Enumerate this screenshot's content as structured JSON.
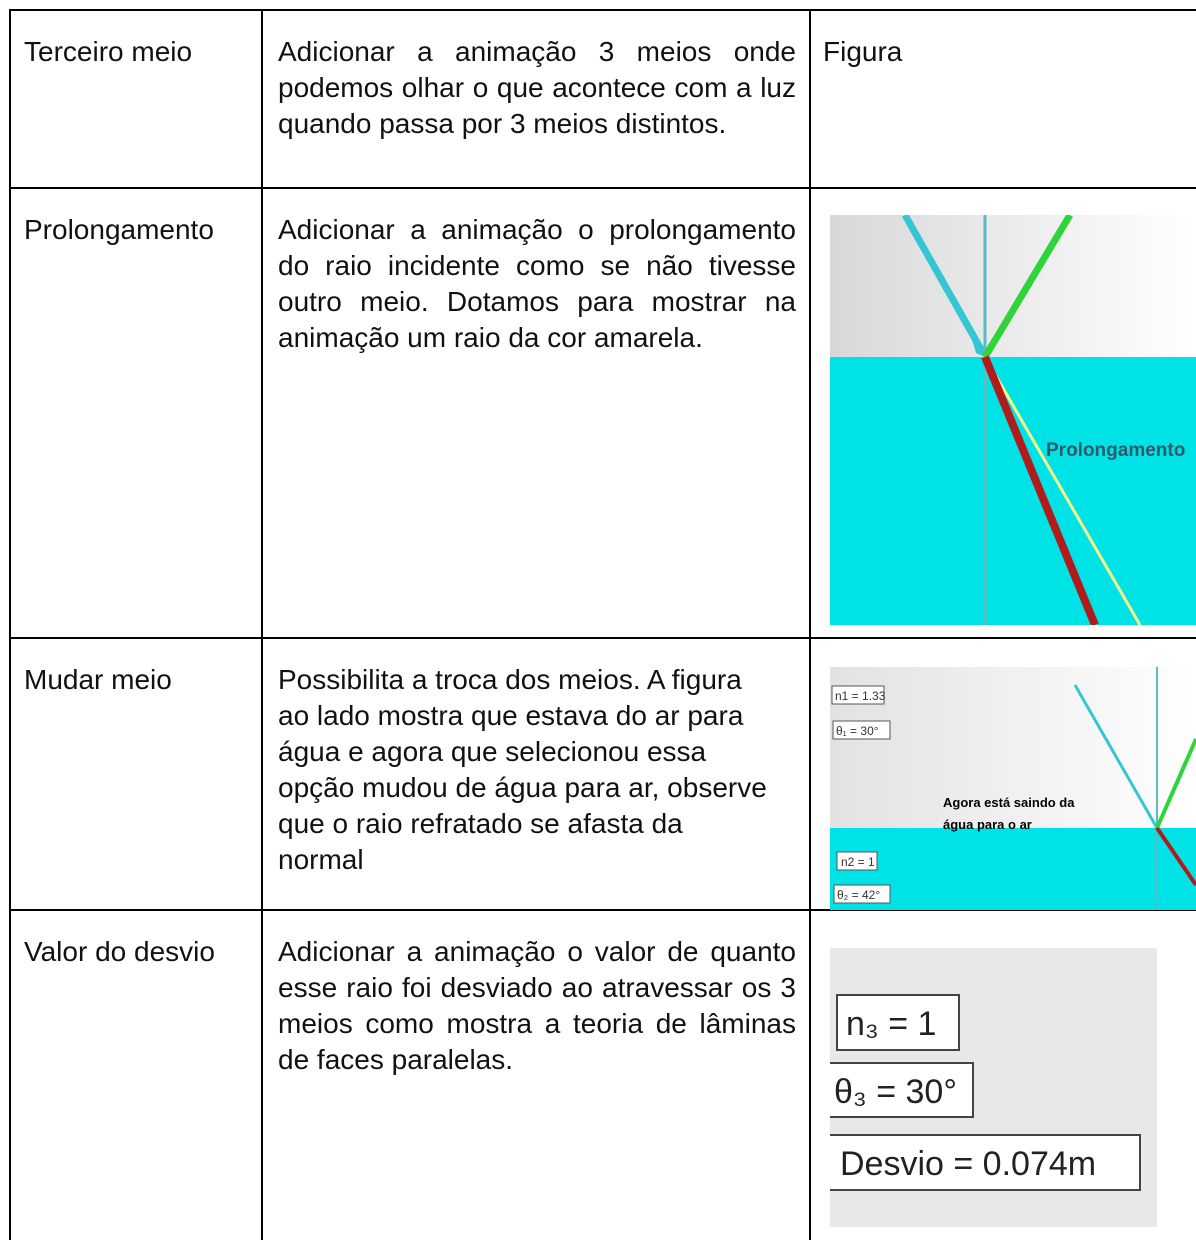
{
  "table": {
    "rows": [
      {
        "cells": [
          "Terceiro meio",
          "Adicionar a animação 3 meios onde podemos olhar o que acontece com a luz quando passa por 3 meios distintos.",
          "Figura"
        ]
      },
      {
        "cells": [
          "Prolongamento",
          "Adicionar a animação o prolongamento do raio incidente como se não tivesse outro meio. Dotamos para mostrar na animação um raio da cor amarela."
        ],
        "figure_labels": [
          "Prolongamento"
        ]
      },
      {
        "cells": [
          "Mudar meio",
          "Possibilita a troca dos meios. A figura ao lado mostra que estava do ar para água e agora que selecionou essa opção mudou de água para ar, observe que o raio refratado se afasta da normal"
        ],
        "figure_labels": [
          "n1 = 1.33",
          "θ₁ = 30°",
          "Agora está saindo da",
          "água para o ar",
          "n2 = 1",
          "θ₂ = 42°"
        ]
      },
      {
        "cells": [
          "Valor do desvio",
          "Adicionar a animação o valor de quanto esse raio foi desviado ao atravessar os 3 meios como mostra a teoria de lâminas de faces paralelas."
        ],
        "figure_labels": [
          "n₃ = 1",
          "θ₃ = 30°",
          "Desvio = 0.074m"
        ]
      }
    ]
  }
}
